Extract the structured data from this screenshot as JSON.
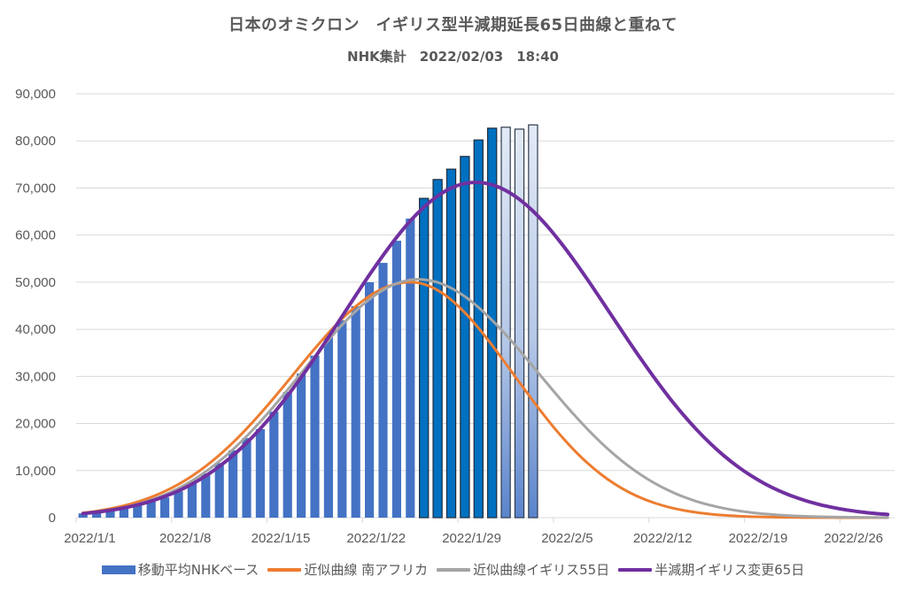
{
  "chart_data": {
    "type": "bar",
    "title": "日本のオミクロン　イギリス型半減期延長65日曲線と重ねて",
    "subtitle": "NHK集計　2022/02/03　18:40",
    "xlabel": "",
    "ylabel": "",
    "ylim": [
      0,
      90000
    ],
    "yticks": [
      0,
      10000,
      20000,
      30000,
      40000,
      50000,
      60000,
      70000,
      80000,
      90000
    ],
    "ytick_labels": [
      "0",
      "10,000",
      "20,000",
      "30,000",
      "40,000",
      "50,000",
      "60,000",
      "70,000",
      "80,000",
      "90,000"
    ],
    "xtick_labels": [
      "2022/1/1",
      "2022/1/8",
      "2022/1/15",
      "2022/1/22",
      "2022/1/29",
      "2022/2/5",
      "2022/2/12",
      "2022/2/19",
      "2022/2/26"
    ],
    "grid": true,
    "legend_position": "bottom",
    "x_start": "2022/1/1",
    "x_days": 60,
    "bar_color_groups": [
      {
        "from_day": 0,
        "to_day": 24,
        "style": "medium-blue",
        "color": "#4472C4"
      },
      {
        "from_day": 25,
        "to_day": 30,
        "style": "dark-blue-outlined",
        "color": "#0070C0"
      },
      {
        "from_day": 31,
        "to_day": 33,
        "style": "light-gradient-outlined",
        "color": "#DAE3F3"
      }
    ],
    "series": [
      {
        "name": "移動平均NHKベース",
        "kind": "bar",
        "color": "#4472C4",
        "values": [
          900,
          1200,
          1600,
          2100,
          2700,
          3400,
          4300,
          5600,
          7500,
          9400,
          11600,
          14300,
          16900,
          18800,
          22500,
          26700,
          30600,
          34400,
          38700,
          41900,
          44900,
          50000,
          54100,
          58800,
          63500,
          67800,
          71800,
          74000,
          76700,
          80200,
          82700,
          82900,
          82500,
          83400
        ]
      },
      {
        "name": "近似曲線 南アフリカ",
        "kind": "line",
        "color": "#ED7D31",
        "values": [
          1020,
          1400,
          1900,
          2540,
          3350,
          4360,
          5600,
          7090,
          8860,
          10930,
          13300,
          15960,
          18900,
          22070,
          25440,
          28930,
          32460,
          35910,
          39210,
          42240,
          44870,
          47050,
          48670,
          49660,
          50000,
          49570,
          48300,
          46250,
          43530,
          40270,
          36610,
          32720,
          28730,
          24800,
          21030,
          17530,
          14370,
          11570,
          9160,
          7130,
          5450,
          4100,
          3030,
          2200,
          1570,
          1100,
          760,
          510,
          340,
          220,
          140,
          90,
          60,
          35,
          22,
          13,
          8,
          5,
          3,
          2
        ]
      },
      {
        "name": "近似曲線イギリス55日",
        "kind": "line",
        "color": "#A5A5A5",
        "values": [
          850,
          1170,
          1600,
          2160,
          2880,
          3780,
          4890,
          6240,
          7860,
          9780,
          11990,
          14500,
          17300,
          20390,
          23680,
          27140,
          30700,
          34260,
          37700,
          40940,
          43870,
          46350,
          48320,
          49740,
          50480,
          50550,
          49960,
          48750,
          46960,
          44650,
          41910,
          38860,
          35550,
          32080,
          28610,
          25180,
          21880,
          18760,
          15890,
          13280,
          10950,
          8930,
          7180,
          5700,
          4460,
          3450,
          2640,
          1990,
          1480,
          1090,
          790,
          560,
          400,
          280,
          190,
          130,
          90,
          60,
          40,
          25
        ]
      },
      {
        "name": "半減期イギリス変更65日",
        "kind": "line",
        "color": "#7030A0",
        "values": [
          870,
          1170,
          1570,
          2070,
          2710,
          3510,
          4500,
          5700,
          7150,
          8870,
          10890,
          13220,
          15880,
          18900,
          22230,
          25880,
          29800,
          33970,
          38300,
          42760,
          47190,
          51550,
          55680,
          59540,
          63020,
          65930,
          68290,
          69990,
          70960,
          71190,
          70680,
          69460,
          67580,
          65080,
          62030,
          58510,
          54650,
          50520,
          46220,
          41870,
          37540,
          33320,
          29270,
          25440,
          21900,
          18660,
          15740,
          13140,
          10860,
          8880,
          7190,
          5760,
          4570,
          3590,
          2790,
          2150,
          1630,
          1230,
          920,
          680
        ]
      }
    ]
  }
}
